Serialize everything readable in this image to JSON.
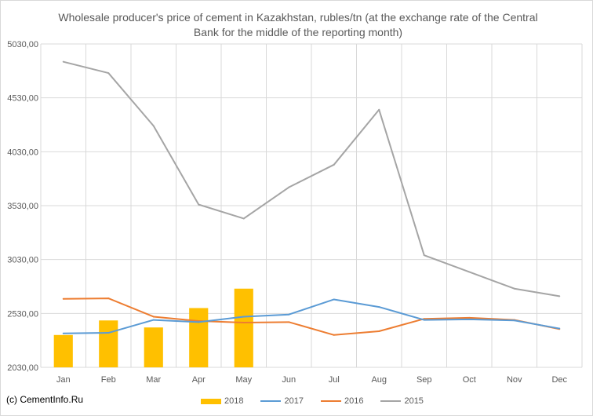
{
  "chart_data": {
    "type": "bar+line",
    "title": "Wholesale producer's price of cement in Kazakhstan, rubles/tn (at the exchange rate of the Central Bank for the middle of the reporting month)",
    "categories": [
      "Jan",
      "Feb",
      "Mar",
      "Apr",
      "May",
      "Jun",
      "Jul",
      "Aug",
      "Sep",
      "Oct",
      "Nov",
      "Dec"
    ],
    "y_ticks": [
      "2030,00",
      "2530,00",
      "3030,00",
      "3530,00",
      "4030,00",
      "4530,00",
      "5030,00"
    ],
    "ylim": [
      2030,
      5030
    ],
    "grid": "on",
    "legend_position": "bottom",
    "series": [
      {
        "name": "2018",
        "type": "bar",
        "color": "#ffc000",
        "values": [
          2330,
          2465,
          2400,
          2580,
          2760,
          null,
          null,
          null,
          null,
          null,
          null,
          null
        ]
      },
      {
        "name": "2017",
        "type": "line",
        "color": "#5b9bd5",
        "values": [
          2345,
          2350,
          2470,
          2450,
          2500,
          2520,
          2660,
          2590,
          2470,
          2475,
          2465,
          2390
        ]
      },
      {
        "name": "2016",
        "type": "line",
        "color": "#ed7d31",
        "values": [
          2665,
          2670,
          2500,
          2460,
          2445,
          2450,
          2330,
          2365,
          2480,
          2490,
          2470,
          2385
        ]
      },
      {
        "name": "2015",
        "type": "line",
        "color": "#a5a5a5",
        "values": [
          4865,
          4760,
          4270,
          3540,
          3410,
          3700,
          3910,
          4420,
          3070,
          2915,
          2760,
          2690
        ]
      }
    ]
  },
  "copyright": "(c) CementInfo.Ru"
}
